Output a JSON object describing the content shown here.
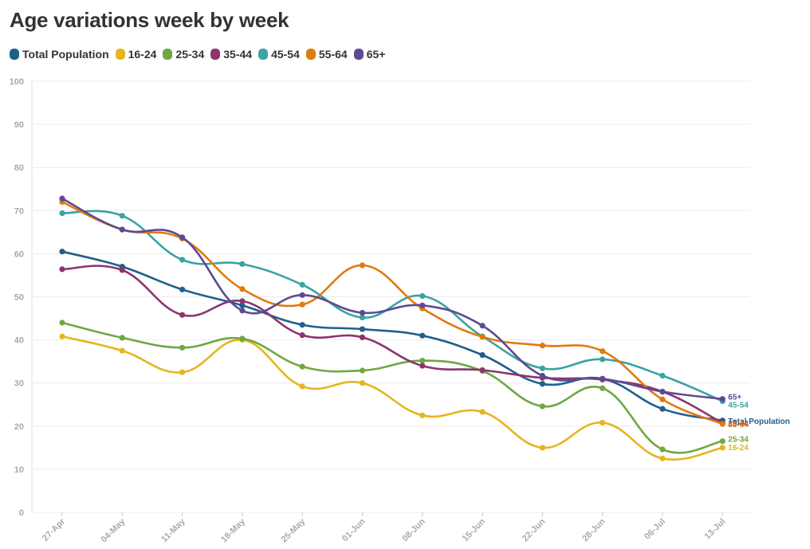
{
  "chart_data": {
    "type": "line",
    "title": "Age variations week by week",
    "xlabel": "",
    "ylabel": "",
    "ylim": [
      0,
      100
    ],
    "yticks": [
      0,
      10,
      20,
      30,
      40,
      50,
      60,
      70,
      80,
      90,
      100
    ],
    "grid": true,
    "legend_position": "top-left",
    "categories": [
      "27-Apr",
      "04-May",
      "11-May",
      "18-May",
      "25-May",
      "01-Jun",
      "08-Jun",
      "15-Jun",
      "22-Jun",
      "28-Jun",
      "06-Jul",
      "13-Jul"
    ],
    "series": [
      {
        "name": "Total Population",
        "color": "#1f5f8b",
        "values": [
          60.5,
          57,
          51.7,
          48,
          43.5,
          42.5,
          41,
          36.5,
          29.8,
          31,
          24,
          21.3
        ]
      },
      {
        "name": "16-24",
        "color": "#e6b520",
        "values": [
          40.8,
          37.5,
          32.5,
          40,
          29.2,
          30,
          22.5,
          23.3,
          15,
          20.8,
          12.5,
          15
        ]
      },
      {
        "name": "25-34",
        "color": "#6fa843",
        "values": [
          44,
          40.5,
          38.2,
          40.3,
          33.8,
          32.9,
          35.2,
          32.8,
          24.6,
          28.8,
          14.6,
          16.5
        ]
      },
      {
        "name": "35-44",
        "color": "#8b3470",
        "values": [
          56.4,
          56.2,
          45.8,
          49,
          41.1,
          40.6,
          34,
          33,
          31.2,
          30.8,
          28,
          20.7
        ]
      },
      {
        "name": "45-54",
        "color": "#3aa3a3",
        "values": [
          69.4,
          68.8,
          58.6,
          57.6,
          52.8,
          45.2,
          50.2,
          40.8,
          33.4,
          35.5,
          31.7,
          25.8
        ]
      },
      {
        "name": "55-64",
        "color": "#e07b0e",
        "values": [
          72,
          65.6,
          63.5,
          51.8,
          48.2,
          57.3,
          47.3,
          40.7,
          38.7,
          37.4,
          26.2,
          20.5
        ]
      },
      {
        "name": "65+",
        "color": "#5e4a94",
        "values": [
          72.8,
          65.6,
          63.8,
          46.8,
          50.4,
          46.3,
          48,
          43.3,
          31.7,
          31,
          28,
          26.3
        ]
      }
    ],
    "end_labels": [
      {
        "text": "65+",
        "color": "#5e4a94"
      },
      {
        "text": "45-54",
        "color": "#3aa3a3"
      },
      {
        "text": "Total Population",
        "color": "#1f5f8b"
      },
      {
        "text": "35-44",
        "color": "#8b3470"
      },
      {
        "text": "55-64",
        "color": "#e07b0e"
      },
      {
        "text": "25-34",
        "color": "#6fa843"
      },
      {
        "text": "16-24",
        "color": "#e6b520"
      }
    ]
  }
}
